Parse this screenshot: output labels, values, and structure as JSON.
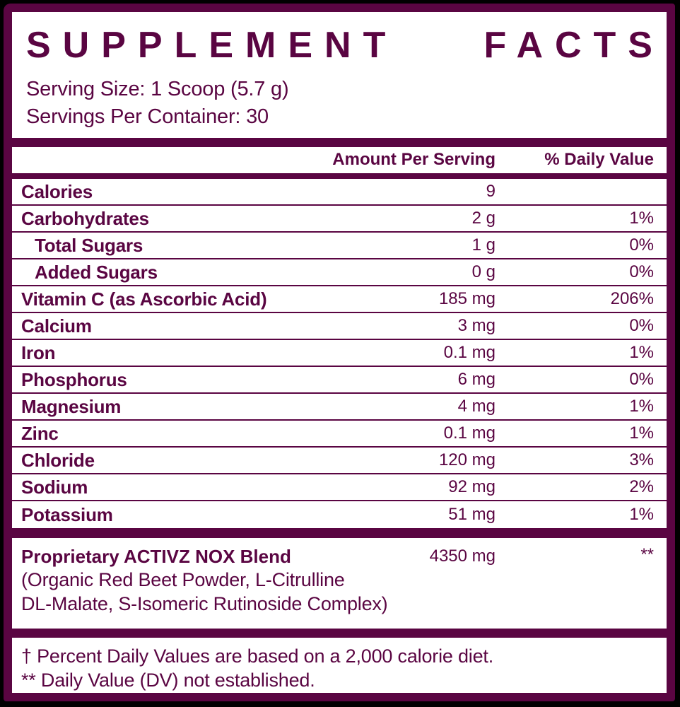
{
  "colors": {
    "brand": "#5A0542",
    "panel": "#FFFFFF",
    "background": "#000000"
  },
  "header": {
    "title": "SUPPLEMENT FACTS",
    "title_words": [
      "SUPPLEMENT",
      "FACTS"
    ],
    "serving_size": "Serving Size: 1 Scoop (5.7 g)",
    "servings_per_container": "Servings Per Container: 30"
  },
  "table": {
    "columns": {
      "amount": "Amount Per Serving",
      "daily_value": "% Daily Value"
    },
    "rows": [
      {
        "name": "Calories",
        "amount": "9",
        "dv": "",
        "indent": false
      },
      {
        "name": "Carbohydrates",
        "amount": "2 g",
        "dv": "1%",
        "indent": false
      },
      {
        "name": "Total Sugars",
        "amount": "1 g",
        "dv": "0%",
        "indent": true
      },
      {
        "name": "Added Sugars",
        "amount": "0 g",
        "dv": "0%",
        "indent": true
      },
      {
        "name": "Vitamin C (as Ascorbic Acid)",
        "amount": "185 mg",
        "dv": "206%",
        "indent": false
      },
      {
        "name": "Calcium",
        "amount": "3 mg",
        "dv": "0%",
        "indent": false
      },
      {
        "name": "Iron",
        "amount": "0.1 mg",
        "dv": "1%",
        "indent": false
      },
      {
        "name": "Phosphorus",
        "amount": "6 mg",
        "dv": "0%",
        "indent": false
      },
      {
        "name": "Magnesium",
        "amount": "4 mg",
        "dv": "1%",
        "indent": false
      },
      {
        "name": "Zinc",
        "amount": "0.1 mg",
        "dv": "1%",
        "indent": false
      },
      {
        "name": "Chloride",
        "amount": "120 mg",
        "dv": "3%",
        "indent": false
      },
      {
        "name": "Sodium",
        "amount": "92 mg",
        "dv": "2%",
        "indent": false
      },
      {
        "name": "Potassium",
        "amount": "51 mg",
        "dv": "1%",
        "indent": false
      }
    ]
  },
  "blend": {
    "name": "Proprietary ACTIVZ NOX Blend",
    "amount": "4350 mg",
    "dv": "**",
    "ingredients_line1": "(Organic Red Beet Powder, L-Citrulline",
    "ingredients_line2": "DL-Malate, S-Isomeric Rutinoside Complex)"
  },
  "footnotes": {
    "line1": "† Percent Daily Values are based on a 2,000 calorie diet.",
    "line2": "** Daily Value (DV) not established."
  }
}
